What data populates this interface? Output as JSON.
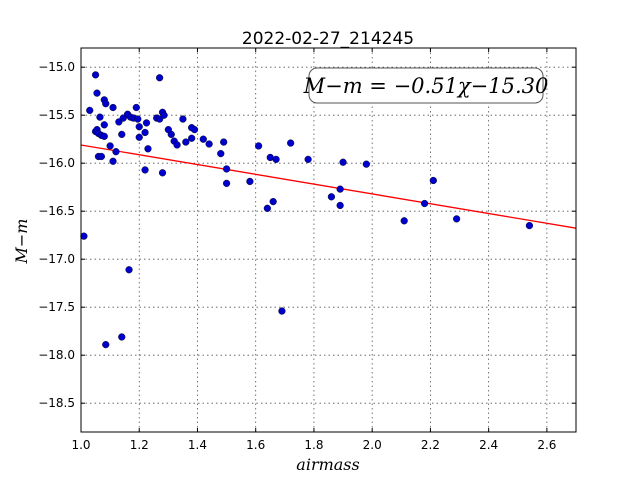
{
  "chart_data": {
    "type": "scatter",
    "title": "2022-02-27_214245",
    "xlabel": "airmass",
    "ylabel": "M−m",
    "xlim": [
      1.0,
      2.7
    ],
    "ylim": [
      -18.8,
      -14.8
    ],
    "x_ticks": [
      1.0,
      1.2,
      1.4,
      1.6,
      1.8,
      2.0,
      2.2,
      2.4,
      2.6
    ],
    "x_tick_labels": [
      "1.0",
      "1.2",
      "1.4",
      "1.6",
      "1.8",
      "2.0",
      "2.2",
      "2.4",
      "2.6"
    ],
    "y_ticks": [
      -15.0,
      -15.5,
      -16.0,
      -16.5,
      -17.0,
      -17.5,
      -18.0,
      -18.5
    ],
    "y_tick_labels": [
      "−15.0",
      "−15.5",
      "−16.0",
      "−16.5",
      "−17.0",
      "−17.5",
      "−18.0",
      "−18.5"
    ],
    "grid": true,
    "annotation": "M−m = −0.51χ−15.30",
    "fit": {
      "slope": -0.51,
      "intercept": -15.3,
      "color": "#ff0000"
    },
    "point_color": "#0000cc",
    "points": [
      [
        1.01,
        -16.76
      ],
      [
        1.03,
        -15.45
      ],
      [
        1.05,
        -15.08
      ],
      [
        1.05,
        -15.67
      ],
      [
        1.055,
        -15.27
      ],
      [
        1.055,
        -15.65
      ],
      [
        1.06,
        -15.69
      ],
      [
        1.06,
        -15.93
      ],
      [
        1.065,
        -15.52
      ],
      [
        1.07,
        -15.71
      ],
      [
        1.07,
        -15.93
      ],
      [
        1.08,
        -15.34
      ],
      [
        1.08,
        -15.72
      ],
      [
        1.08,
        -15.6
      ],
      [
        1.085,
        -15.38
      ],
      [
        1.085,
        -17.89
      ],
      [
        1.1,
        -15.82
      ],
      [
        1.11,
        -15.42
      ],
      [
        1.11,
        -15.98
      ],
      [
        1.12,
        -15.88
      ],
      [
        1.13,
        -15.57
      ],
      [
        1.14,
        -17.81
      ],
      [
        1.14,
        -15.7
      ],
      [
        1.145,
        -15.53
      ],
      [
        1.16,
        -15.49
      ],
      [
        1.165,
        -17.11
      ],
      [
        1.17,
        -15.52
      ],
      [
        1.18,
        -15.53
      ],
      [
        1.19,
        -15.42
      ],
      [
        1.195,
        -15.54
      ],
      [
        1.2,
        -15.62
      ],
      [
        1.2,
        -15.73
      ],
      [
        1.22,
        -15.68
      ],
      [
        1.22,
        -16.07
      ],
      [
        1.225,
        -15.58
      ],
      [
        1.23,
        -15.85
      ],
      [
        1.26,
        -15.53
      ],
      [
        1.27,
        -15.11
      ],
      [
        1.27,
        -15.54
      ],
      [
        1.28,
        -15.47
      ],
      [
        1.28,
        -16.1
      ],
      [
        1.285,
        -15.5
      ],
      [
        1.3,
        -15.65
      ],
      [
        1.31,
        -15.7
      ],
      [
        1.32,
        -15.77
      ],
      [
        1.33,
        -15.81
      ],
      [
        1.35,
        -15.54
      ],
      [
        1.36,
        -15.78
      ],
      [
        1.38,
        -15.63
      ],
      [
        1.38,
        -15.74
      ],
      [
        1.39,
        -15.65
      ],
      [
        1.42,
        -15.75
      ],
      [
        1.44,
        -15.8
      ],
      [
        1.48,
        -15.9
      ],
      [
        1.49,
        -15.78
      ],
      [
        1.5,
        -16.06
      ],
      [
        1.5,
        -16.21
      ],
      [
        1.58,
        -16.19
      ],
      [
        1.61,
        -15.82
      ],
      [
        1.64,
        -16.47
      ],
      [
        1.65,
        -15.94
      ],
      [
        1.66,
        -16.4
      ],
      [
        1.67,
        -15.96
      ],
      [
        1.69,
        -17.54
      ],
      [
        1.72,
        -15.79
      ],
      [
        1.78,
        -15.96
      ],
      [
        1.86,
        -16.35
      ],
      [
        1.89,
        -16.27
      ],
      [
        1.89,
        -16.44
      ],
      [
        1.9,
        -15.99
      ],
      [
        1.98,
        -16.01
      ],
      [
        2.11,
        -16.6
      ],
      [
        2.18,
        -16.42
      ],
      [
        2.21,
        -16.18
      ],
      [
        2.29,
        -16.58
      ],
      [
        2.54,
        -16.65
      ]
    ]
  }
}
